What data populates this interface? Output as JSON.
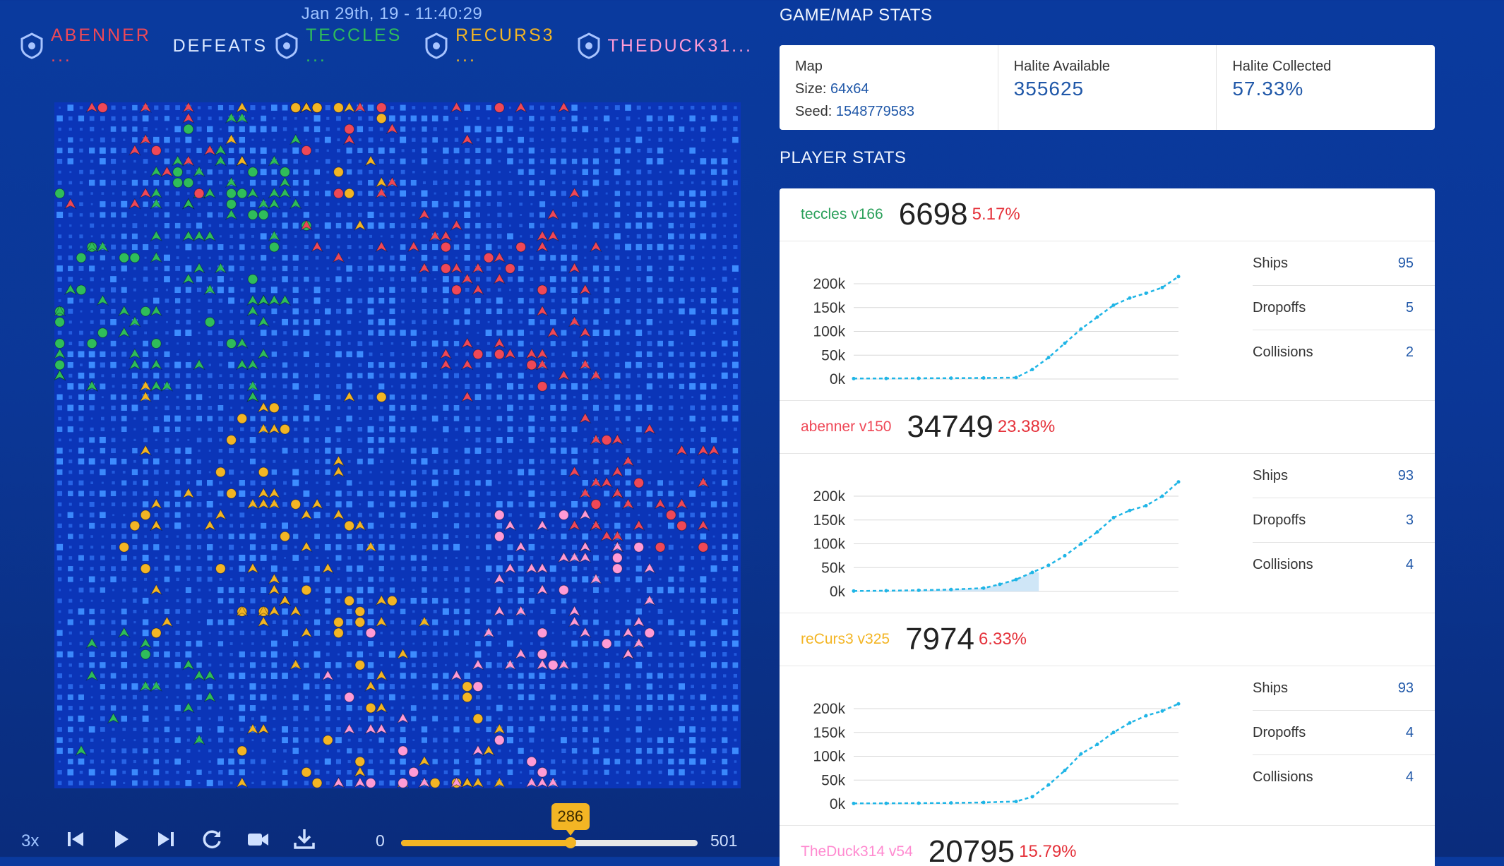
{
  "replay": {
    "date": "Jan 29th, 19 - 11:40:29"
  },
  "matchup": {
    "players": [
      {
        "name": "ABENNER ...",
        "color": "#ef4857"
      },
      {
        "name": "TECCLES ...",
        "color": "#2fbd5a"
      },
      {
        "name": "RECURS3 ...",
        "color": "#f3b524"
      },
      {
        "name": "THEDUCK31...",
        "color": "#ff9bd6"
      }
    ],
    "defeats_label": "DEFEATS"
  },
  "board": {
    "grid_size": 64,
    "ship_symbol": "▲",
    "dropoff_symbol": "●"
  },
  "controls": {
    "speed": "3x",
    "icons": [
      "skip-back-icon",
      "play-icon",
      "skip-forward-icon",
      "reload-icon",
      "video-icon",
      "download-icon"
    ]
  },
  "timeline": {
    "min": "0",
    "max": "501",
    "current": "286",
    "current_frac": 0.571
  },
  "map_stats": {
    "section_title": "GAME/MAP STATS",
    "map_label": "Map",
    "size_label": "Size:",
    "size_value": "64x64",
    "seed_label": "Seed:",
    "seed_value": "1548779583",
    "available_label": "Halite Available",
    "available_value": "355625",
    "collected_label": "Halite Collected",
    "collected_value": "57.33%"
  },
  "player_stats": {
    "section_title": "PLAYER STATS",
    "players": [
      {
        "name": "teccles v166",
        "color": "#2aa05a",
        "score": "6698",
        "pct": "5.17%",
        "ships_label": "Ships",
        "ships": "95",
        "dropoffs_label": "Dropoffs",
        "dropoffs": "5",
        "collisions_label": "Collisions",
        "collisions": "2",
        "chart": {
          "yticks": [
            "200k",
            "150k",
            "100k",
            "50k",
            "0k"
          ],
          "shade_end": 0.0,
          "x": [
            0,
            10,
            20,
            30,
            40,
            50,
            55,
            60,
            65,
            70,
            75,
            80,
            85,
            90,
            95,
            100
          ],
          "y": [
            1000,
            1200,
            1500,
            1800,
            2200,
            3000,
            20000,
            45000,
            75000,
            105000,
            130000,
            155000,
            170000,
            180000,
            192000,
            215000
          ]
        }
      },
      {
        "name": "abenner v150",
        "color": "#ef4857",
        "score": "34749",
        "pct": "23.38%",
        "ships_label": "Ships",
        "ships": "93",
        "dropoffs_label": "Dropoffs",
        "dropoffs": "3",
        "collisions_label": "Collisions",
        "collisions": "4",
        "chart": {
          "yticks": [
            "200k",
            "150k",
            "100k",
            "50k",
            "0k"
          ],
          "shade_end": 0.57,
          "x": [
            0,
            10,
            20,
            30,
            40,
            45,
            50,
            55,
            60,
            65,
            70,
            75,
            80,
            85,
            90,
            95,
            100
          ],
          "y": [
            1000,
            1500,
            2500,
            4000,
            7000,
            15000,
            25000,
            40000,
            55000,
            75000,
            100000,
            125000,
            155000,
            170000,
            180000,
            200000,
            230000
          ]
        }
      },
      {
        "name": "reCurs3 v325",
        "color": "#f3b524",
        "score": "7974",
        "pct": "6.33%",
        "ships_label": "Ships",
        "ships": "93",
        "dropoffs_label": "Dropoffs",
        "dropoffs": "4",
        "collisions_label": "Collisions",
        "collisions": "4",
        "chart": {
          "yticks": [
            "200k",
            "150k",
            "100k",
            "50k",
            "0k"
          ],
          "shade_end": 0.0,
          "x": [
            0,
            10,
            20,
            30,
            40,
            50,
            55,
            60,
            65,
            70,
            75,
            80,
            85,
            90,
            95,
            100
          ],
          "y": [
            1000,
            1200,
            1500,
            2000,
            3000,
            5000,
            15000,
            40000,
            70000,
            105000,
            125000,
            150000,
            170000,
            185000,
            195000,
            210000
          ]
        }
      },
      {
        "name": "TheDuck314 v54",
        "color": "#ff8ad0",
        "score": "20795",
        "pct": "15.79%"
      }
    ]
  },
  "chart_data": [
    {
      "type": "line",
      "series": [
        {
          "values": [
            1000,
            1200,
            1500,
            1800,
            2200,
            3000,
            20000,
            45000,
            75000,
            105000,
            130000,
            155000,
            170000,
            180000,
            192000,
            215000
          ]
        }
      ],
      "yticks": [
        "200k",
        "150k",
        "100k",
        "50k",
        "0k"
      ],
      "ylim": [
        0,
        200000
      ]
    },
    {
      "type": "line",
      "series": [
        {
          "values": [
            1000,
            1500,
            2500,
            4000,
            7000,
            15000,
            25000,
            40000,
            55000,
            75000,
            100000,
            125000,
            155000,
            170000,
            180000,
            200000,
            230000
          ]
        }
      ],
      "yticks": [
        "200k",
        "150k",
        "100k",
        "50k",
        "0k"
      ],
      "ylim": [
        0,
        200000
      ]
    },
    {
      "type": "line",
      "series": [
        {
          "values": [
            1000,
            1200,
            1500,
            2000,
            3000,
            5000,
            15000,
            40000,
            70000,
            105000,
            125000,
            150000,
            170000,
            185000,
            195000,
            210000
          ]
        }
      ],
      "yticks": [
        "200k",
        "150k",
        "100k",
        "50k",
        "0k"
      ],
      "ylim": [
        0,
        200000
      ]
    }
  ]
}
